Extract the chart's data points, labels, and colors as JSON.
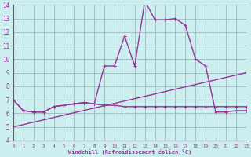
{
  "xlabel": "Windchill (Refroidissement éolien,°C)",
  "background_color": "#cceeee",
  "line_color": "#993399",
  "grid_color": "#99bbbb",
  "x_values": [
    0,
    1,
    2,
    3,
    4,
    5,
    6,
    7,
    8,
    9,
    10,
    11,
    12,
    13,
    14,
    15,
    16,
    17,
    18,
    19,
    20,
    21,
    22,
    23
  ],
  "line1_y": [
    7.0,
    6.2,
    6.1,
    6.1,
    6.5,
    6.6,
    6.7,
    6.8,
    6.7,
    6.6,
    6.6,
    6.5,
    6.5,
    6.5,
    6.5,
    6.5,
    6.5,
    6.5,
    6.5,
    6.5,
    6.5,
    6.5,
    6.5,
    6.5
  ],
  "line2_y": [
    7.0,
    6.2,
    6.1,
    6.1,
    6.5,
    6.6,
    6.7,
    6.8,
    6.7,
    9.5,
    9.5,
    11.7,
    9.5,
    14.3,
    12.9,
    12.9,
    13.0,
    12.5,
    10.0,
    9.5,
    6.1,
    6.1,
    6.2,
    6.2
  ],
  "line3_x": [
    0,
    23
  ],
  "line3_y": [
    5.0,
    9.0
  ],
  "xlim": [
    0,
    23
  ],
  "ylim": [
    4,
    14
  ],
  "yticks": [
    4,
    5,
    6,
    7,
    8,
    9,
    10,
    11,
    12,
    13,
    14
  ],
  "xticks": [
    0,
    1,
    2,
    3,
    4,
    5,
    6,
    7,
    8,
    9,
    10,
    11,
    12,
    13,
    14,
    15,
    16,
    17,
    18,
    19,
    20,
    21,
    22,
    23
  ]
}
